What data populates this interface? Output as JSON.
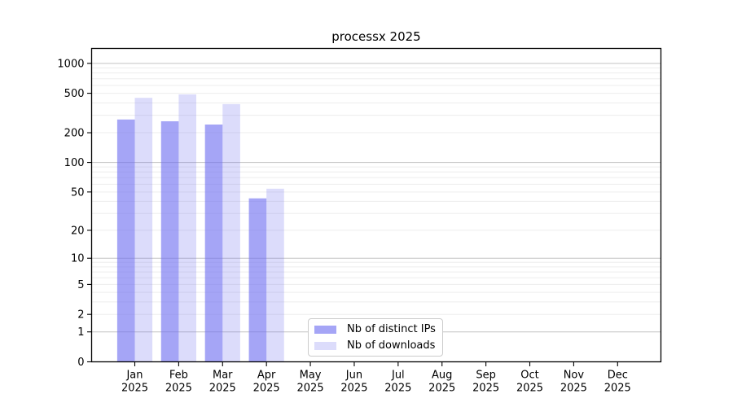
{
  "chart_data": {
    "type": "bar",
    "title": "processx 2025",
    "months": [
      "Jan",
      "Feb",
      "Mar",
      "Apr",
      "May",
      "Jun",
      "Jul",
      "Aug",
      "Sep",
      "Oct",
      "Nov",
      "Dec"
    ],
    "year": "2025",
    "categories": [
      "Jan 2025",
      "Feb 2025",
      "Mar 2025",
      "Apr 2025",
      "May 2025",
      "Jun 2025",
      "Jul 2025",
      "Aug 2025",
      "Sep 2025",
      "Oct 2025",
      "Nov 2025",
      "Dec 2025"
    ],
    "series": [
      {
        "name": "Nb of distinct IPs",
        "color": "rgba(110,110,240,0.62)",
        "values": [
          272,
          261,
          242,
          43,
          null,
          null,
          null,
          null,
          null,
          null,
          null,
          null
        ]
      },
      {
        "name": "Nb of downloads",
        "color": "rgba(110,110,240,0.24)",
        "values": [
          450,
          487,
          389,
          54,
          null,
          null,
          null,
          null,
          null,
          null,
          null,
          null
        ]
      }
    ],
    "y_scale": "log(value+1)",
    "y_ticks": [
      0,
      1,
      2,
      5,
      10,
      20,
      50,
      100,
      200,
      500,
      1000
    ],
    "ylim": [
      0,
      1420
    ],
    "grid": true,
    "gridlines": {
      "major": [
        1,
        10,
        100,
        1000
      ],
      "minor": [
        2,
        3,
        4,
        5,
        6,
        7,
        8,
        9,
        20,
        30,
        40,
        50,
        60,
        70,
        80,
        90,
        200,
        300,
        400,
        500,
        600,
        700,
        800,
        900
      ]
    },
    "gridline_colors": {
      "major": "#c3c3c3",
      "minor": "#ededed"
    },
    "axis_color": "#000000",
    "legend_position": "lower center"
  }
}
